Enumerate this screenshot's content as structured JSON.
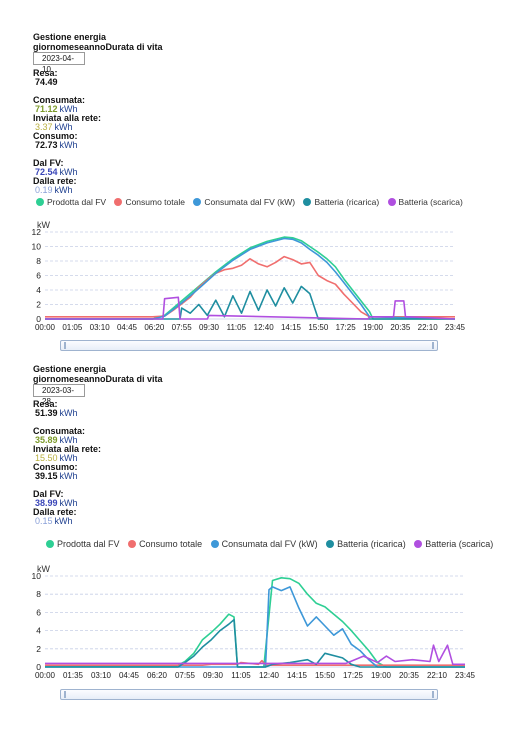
{
  "panels": [
    {
      "title": "Gestione energia",
      "tabs": "giornomeseannoDurata di vita",
      "date": "2023-04-10",
      "resa_label": "Resa:",
      "resa_value": "74.49",
      "resa_unit": "",
      "consumata_label": "Consumata:",
      "consumata_value": "71.12",
      "consumata_unit": "kWh",
      "inviata_label": "Inviata alla rete:",
      "inviata_value": "3.37",
      "inviata_unit": "kWh",
      "consumo_label": "Consumo:",
      "consumo_value": "72.73",
      "consumo_unit": "kWh",
      "dalfv_label": "Dal FV:",
      "dalfv_value": "72.54",
      "dalfv_unit": "kWh",
      "dallarete_label": "Dalla rete:",
      "dallarete_value": "0.19",
      "dallarete_unit": "kWh"
    },
    {
      "title": "Gestione energia",
      "tabs": "giornomeseannoDurata di vita",
      "date": "2023-03-28",
      "resa_label": "Resa:",
      "resa_value": "51.39",
      "resa_unit": "kWh",
      "consumata_label": "Consumata:",
      "consumata_value": "35.89",
      "consumata_unit": "kWh",
      "inviata_label": "Inviata alla rete:",
      "inviata_value": "15.50",
      "inviata_unit": "kWh",
      "consumo_label": "Consumo:",
      "consumo_value": "39.15",
      "consumo_unit": "kWh",
      "dalfv_label": "Dal FV:",
      "dalfv_value": "38.99",
      "dalfv_unit": "kWh",
      "dallarete_label": "Dalla rete:",
      "dallarete_value": "0.15",
      "dallarete_unit": "kWh"
    }
  ],
  "colors": {
    "prodotta": "#2ecf94",
    "consumo_totale": "#f06e6e",
    "consumata": "#3e98d8",
    "batteria_ricarica": "#1f8ea0",
    "batteria_scarica": "#b04fe0",
    "accent_green": "#7c9a2a",
    "accent_olive": "#a8a030",
    "accent_blue": "#1e3f8f"
  },
  "chart_data": [
    {
      "type": "line",
      "ylabel": "kW",
      "ylim": [
        0,
        12
      ],
      "yticks": [
        "0",
        "2",
        "4",
        "6",
        "8",
        "10",
        "12"
      ],
      "xticks": [
        "00:00",
        "01:05",
        "03:10",
        "04:45",
        "06:20",
        "07:55",
        "09:30",
        "11:05",
        "12:40",
        "14:15",
        "15:50",
        "17:25",
        "19:00",
        "20:35",
        "22:10",
        "23:45"
      ],
      "legend": [
        "Prodotta dal FV",
        "Consumo totale",
        "Consumata dal FV (kW)",
        "Batteria (ricarica)",
        "Batteria (scarica)"
      ],
      "series": [
        {
          "name": "Prodotta dal FV",
          "x": [
            0,
            6.3,
            7,
            8,
            9,
            10,
            11,
            12,
            13,
            14,
            14.5,
            15,
            15.5,
            16,
            16.5,
            17,
            17.5,
            18,
            18.5,
            19,
            19.2,
            24
          ],
          "y": [
            0,
            0,
            0.5,
            2.5,
            4.5,
            6.5,
            8.3,
            9.8,
            10.7,
            11.3,
            11.2,
            10.8,
            10,
            9.2,
            8.3,
            7.2,
            5.5,
            4,
            2.5,
            1,
            0,
            0
          ]
        },
        {
          "name": "Consumo totale",
          "x": [
            0,
            6.3,
            7,
            7.5,
            8,
            8.5,
            9,
            9.5,
            10,
            10.5,
            11,
            11.5,
            12,
            12.5,
            13,
            13.5,
            14,
            14.5,
            15,
            15.5,
            16,
            16.5,
            17,
            17.5,
            18,
            18.5,
            19,
            24
          ],
          "y": [
            0.3,
            0.3,
            0.4,
            1.2,
            2.1,
            3,
            4.4,
            5.4,
            6.3,
            6.8,
            7,
            7.4,
            8.3,
            7.6,
            7.2,
            7.8,
            8.6,
            8.2,
            7.6,
            7.8,
            6,
            5.3,
            4.8,
            3.4,
            2.2,
            1,
            0.3,
            0.3
          ]
        },
        {
          "name": "Consumata dal FV (kW)",
          "x": [
            0,
            6.3,
            7,
            8,
            9,
            10,
            11,
            12,
            13,
            14,
            14.5,
            15,
            15.5,
            16,
            16.5,
            17,
            17.5,
            18,
            18.5,
            19,
            24
          ],
          "y": [
            0,
            0,
            0.4,
            2.2,
            4.2,
            6.3,
            8.1,
            9.6,
            10.5,
            11.1,
            11,
            10.5,
            9.6,
            8.8,
            7.8,
            6.5,
            5,
            3.5,
            2,
            0.3,
            0
          ]
        },
        {
          "name": "Batteria (ricarica)",
          "x": [
            0,
            7.9,
            8,
            8.5,
            9,
            9.5,
            10,
            10.5,
            11,
            11.5,
            12,
            12.5,
            13,
            13.5,
            14,
            14.5,
            15,
            15.5,
            16,
            24
          ],
          "y": [
            0,
            0,
            1.5,
            0.8,
            2,
            0.5,
            2.6,
            0.3,
            3.2,
            0.8,
            3.8,
            1.2,
            4,
            1.8,
            4.3,
            2.2,
            4.5,
            3.5,
            0,
            0
          ]
        },
        {
          "name": "Batteria (scarica)",
          "x": [
            0,
            6.9,
            7,
            7.8,
            7.9,
            9.5,
            9.6,
            18.9,
            19,
            20.4,
            20.5,
            21,
            21.1,
            21.3,
            24
          ],
          "y": [
            0,
            0,
            2.8,
            3,
            0,
            0,
            0.5,
            0,
            0.3,
            0.3,
            2.5,
            2.5,
            0.3,
            0.3,
            0
          ]
        }
      ]
    },
    {
      "type": "line",
      "ylabel": "kW",
      "ylim": [
        0,
        10
      ],
      "yticks": [
        "0",
        "2",
        "4",
        "6",
        "8",
        "10"
      ],
      "xticks": [
        "00:00",
        "01:35",
        "03:10",
        "04:45",
        "06:20",
        "07:55",
        "09:30",
        "11:05",
        "12:40",
        "14:15",
        "15:50",
        "17:25",
        "19:00",
        "20:35",
        "22:10",
        "23:45"
      ],
      "legend": [
        "Prodotta dal FV",
        "Consumo totale",
        "Consumata dal FV (kW)",
        "Batteria (ricarica)",
        "Batteria (scarica)"
      ],
      "series": [
        {
          "name": "Prodotta dal FV",
          "x": [
            0,
            7.5,
            8,
            8.5,
            9,
            9.5,
            10,
            10.5,
            10.8,
            11,
            12,
            12.5,
            13,
            13.5,
            14,
            14.5,
            15,
            15.5,
            16,
            16.5,
            17,
            17.5,
            18,
            18.5,
            19,
            19.5,
            24
          ],
          "y": [
            0.1,
            0.1,
            0.6,
            1.5,
            3,
            3.8,
            4.7,
            5.8,
            5.5,
            0,
            0,
            0,
            9.5,
            9.8,
            9.7,
            9.2,
            8,
            7,
            6.6,
            5.8,
            5,
            4,
            2.9,
            1.8,
            0.5,
            0,
            0
          ]
        },
        {
          "name": "Consumo totale",
          "x": [
            0,
            9,
            9.5,
            11,
            11.2,
            12.2,
            12.4,
            12.6,
            24
          ],
          "y": [
            0.2,
            0.2,
            0.3,
            0.3,
            0.5,
            0.3,
            0.7,
            0.2,
            0.2
          ]
        },
        {
          "name": "Consumata dal FV (kW)",
          "x": [
            0,
            12.6,
            12.8,
            13,
            13.5,
            14,
            14.5,
            15,
            15.5,
            16,
            16.5,
            17,
            17.5,
            18,
            18.5,
            19,
            24
          ],
          "y": [
            0,
            0,
            8.5,
            8.8,
            8.4,
            8.8,
            6.5,
            4.5,
            5.5,
            4.5,
            3.5,
            4.2,
            2.5,
            1.8,
            0.8,
            0,
            0
          ]
        },
        {
          "name": "Batteria (ricarica)",
          "x": [
            0,
            7.6,
            8,
            8.5,
            9,
            9.5,
            10,
            10.5,
            10.8,
            11,
            12.6,
            13,
            14,
            15,
            15.5,
            16,
            17,
            17.5,
            18,
            24
          ],
          "y": [
            0,
            0,
            0.5,
            1.2,
            2.2,
            3,
            4,
            4.7,
            5.2,
            0,
            0,
            0.3,
            0.5,
            0.8,
            0.3,
            1.5,
            1,
            0.3,
            0,
            0
          ]
        },
        {
          "name": "Batteria (scarica)",
          "x": [
            0,
            17.2,
            18.2,
            19,
            19.5,
            20,
            21,
            22,
            22.2,
            22.5,
            23,
            23.3,
            24
          ],
          "y": [
            0.4,
            0.4,
            1.2,
            0.5,
            1.2,
            0.6,
            0.8,
            0.6,
            2.4,
            0.6,
            2.4,
            0.3,
            0.3
          ]
        }
      ]
    }
  ]
}
